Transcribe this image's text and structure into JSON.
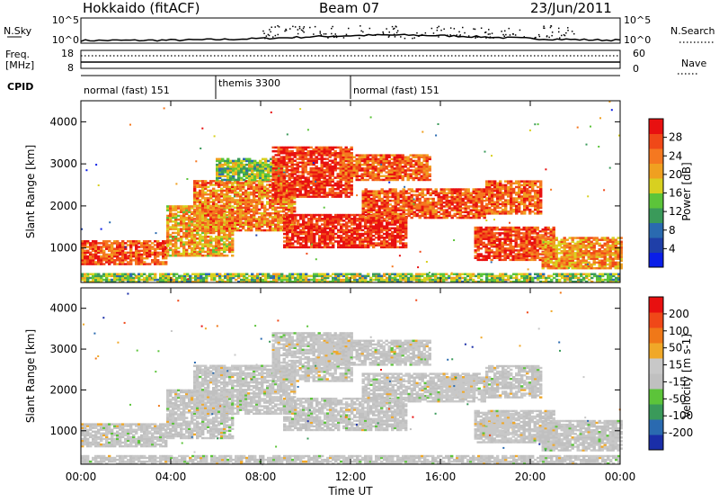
{
  "header": {
    "station": "Hokkaido (fitACF)",
    "beam": "Beam 07",
    "date": "23/Jun/2011"
  },
  "summary": {
    "nsky_label": "N.Sky",
    "nsky_ticks": [
      "10^5",
      "10^0"
    ],
    "nsearch_label": "N.Search",
    "nsearch_ticks": [
      "10^5",
      "10^0"
    ],
    "freq_label": "Freq.",
    "freq_unit": "[MHz]",
    "freq_ticks": [
      "18",
      "8"
    ],
    "nave_label": "Nave",
    "nave_ticks": [
      "60",
      "0"
    ],
    "cpid_label": "CPID"
  },
  "cpid_segments": [
    {
      "label": "normal (fast) 151",
      "start_h": 0,
      "end_h": 6
    },
    {
      "label": "themis 3300",
      "start_h": 6,
      "end_h": 12
    },
    {
      "label": "normal (fast) 151",
      "start_h": 12,
      "end_h": 24
    }
  ],
  "colors": {
    "power_scale": [
      "#0a1ee8",
      "#1f3fa8",
      "#2a6ab0",
      "#3a9a5a",
      "#5cc43a",
      "#d8d020",
      "#f0a020",
      "#f57820",
      "#f04818",
      "#e81010"
    ],
    "velocity_scale": [
      "#e81010",
      "#f04818",
      "#f07818",
      "#f0a828",
      "#c8c8c8",
      "#c0c0c0",
      "#5cc43a",
      "#3a9a5a",
      "#2a6ab0",
      "#1a2ea8"
    ]
  },
  "chart_data": [
    {
      "type": "heatmap",
      "name": "power",
      "xlabel": "",
      "ylabel": "Slant Range [km]",
      "xlim": [
        0,
        24
      ],
      "ylim": [
        180,
        4500
      ],
      "yticks": [
        "1000",
        "2000",
        "3000",
        "4000"
      ],
      "colorbar": {
        "label": "Power [dB]",
        "ticks": [
          "4",
          "8",
          "12",
          "16",
          "20",
          "24",
          "28"
        ],
        "range": [
          0,
          30
        ]
      },
      "regions": [
        {
          "t0": 0,
          "t1": 24,
          "r0": 180,
          "r1": 380,
          "v": 14
        },
        {
          "t0": 0,
          "t1": 3.8,
          "r0": 600,
          "r1": 1150,
          "v": 25
        },
        {
          "t0": 3.8,
          "t1": 6.8,
          "r0": 800,
          "r1": 2000,
          "v": 20
        },
        {
          "t0": 5.0,
          "t1": 9.5,
          "r0": 1400,
          "r1": 2600,
          "v": 22
        },
        {
          "t0": 6.0,
          "t1": 9.0,
          "r0": 2600,
          "r1": 3100,
          "v": 14
        },
        {
          "t0": 8.5,
          "t1": 12.0,
          "r0": 2200,
          "r1": 3400,
          "v": 27
        },
        {
          "t0": 9.0,
          "t1": 14.5,
          "r0": 1000,
          "r1": 1800,
          "v": 28
        },
        {
          "t0": 11.5,
          "t1": 15.5,
          "r0": 2600,
          "r1": 3200,
          "v": 24
        },
        {
          "t0": 12.5,
          "t1": 18.0,
          "r0": 1700,
          "r1": 2400,
          "v": 25
        },
        {
          "t0": 18.0,
          "t1": 20.5,
          "r0": 1800,
          "r1": 2600,
          "v": 24
        },
        {
          "t0": 17.5,
          "t1": 21.0,
          "r0": 700,
          "r1": 1500,
          "v": 26
        },
        {
          "t0": 20.5,
          "t1": 24.0,
          "r0": 500,
          "r1": 1250,
          "v": 21
        }
      ]
    },
    {
      "type": "heatmap",
      "name": "velocity",
      "xlabel": "Time UT",
      "ylabel": "Slant Range [km]",
      "xlim": [
        0,
        24
      ],
      "ylim": [
        180,
        4500
      ],
      "xticks": [
        "00:00",
        "04:00",
        "08:00",
        "12:00",
        "16:00",
        "20:00",
        "00:00"
      ],
      "yticks": [
        "1000",
        "2000",
        "3000",
        "4000"
      ],
      "colorbar": {
        "label": "Velocity [m s-1]",
        "ticks": [
          "200",
          "100",
          "50",
          "15",
          "-15",
          "-50",
          "-100",
          "-200"
        ],
        "range": [
          -250,
          250
        ]
      },
      "regions": [
        {
          "t0": 0,
          "t1": 24,
          "r0": 180,
          "r1": 380,
          "v": 0
        },
        {
          "t0": 0,
          "t1": 3.8,
          "r0": 600,
          "r1": 1150,
          "v": 0
        },
        {
          "t0": 3.8,
          "t1": 6.8,
          "r0": 800,
          "r1": 2000,
          "v": 0
        },
        {
          "t0": 5.0,
          "t1": 9.5,
          "r0": 1400,
          "r1": 2600,
          "v": 0
        },
        {
          "t0": 8.5,
          "t1": 12.0,
          "r0": 2200,
          "r1": 3400,
          "v": 0
        },
        {
          "t0": 10.5,
          "t1": 12.0,
          "r0": 2600,
          "r1": 3100,
          "v": 40
        },
        {
          "t0": 9.0,
          "t1": 14.5,
          "r0": 1000,
          "r1": 1800,
          "v": 0
        },
        {
          "t0": 11.5,
          "t1": 15.5,
          "r0": 2600,
          "r1": 3200,
          "v": 0
        },
        {
          "t0": 12.5,
          "t1": 18.0,
          "r0": 1700,
          "r1": 2400,
          "v": 0
        },
        {
          "t0": 16.0,
          "t1": 17.5,
          "r0": 1800,
          "r1": 2300,
          "v": 40
        },
        {
          "t0": 18.0,
          "t1": 20.5,
          "r0": 1800,
          "r1": 2600,
          "v": 0
        },
        {
          "t0": 17.5,
          "t1": 21.0,
          "r0": 700,
          "r1": 1500,
          "v": 0
        },
        {
          "t0": 18.0,
          "t1": 19.3,
          "r0": 900,
          "r1": 1400,
          "v": 40
        },
        {
          "t0": 20.5,
          "t1": 24.0,
          "r0": 500,
          "r1": 1250,
          "v": 0
        }
      ]
    }
  ]
}
